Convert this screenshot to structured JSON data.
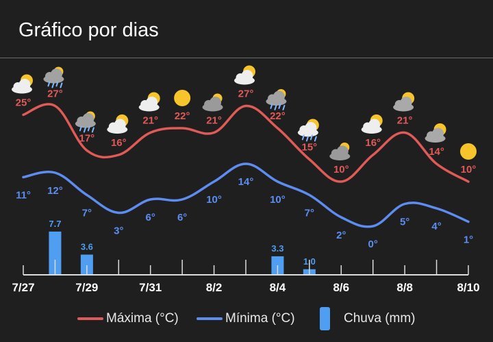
{
  "header": {
    "title": "Gráfico por dias"
  },
  "colors": {
    "max": "#e05a58",
    "min": "#5d8df0",
    "rain": "#4f9ef1",
    "bg": "#1f1f1f",
    "axis": "#dddddd"
  },
  "legend": [
    {
      "label": "Máxima (°C)",
      "kind": "line",
      "color": "#e05a58"
    },
    {
      "label": "Mínima (°C)",
      "kind": "line",
      "color": "#5d8df0"
    },
    {
      "label": "Chuva (mm)",
      "kind": "bar",
      "color": "#4f9ef1"
    }
  ],
  "chart_data": {
    "type": "line",
    "x_tick_labels": [
      "7/27",
      "7/29",
      "7/31",
      "8/2",
      "8/4",
      "8/6",
      "8/8",
      "8/10"
    ],
    "x": [
      "7/27",
      "7/28",
      "7/29",
      "7/30",
      "7/31",
      "8/1",
      "8/2",
      "8/3",
      "8/4",
      "8/5",
      "8/6",
      "8/7",
      "8/8",
      "8/9",
      "8/10"
    ],
    "series": [
      {
        "name": "Máxima (°C)",
        "values": [
          25,
          27,
          17,
          16,
          21,
          22,
          21,
          27,
          22,
          15,
          10,
          16,
          21,
          14,
          10
        ],
        "labels": [
          "25°",
          "27°",
          "17°",
          "16°",
          "21°",
          "22°",
          "21°",
          "27°",
          "22°",
          "15°",
          "10°",
          "16°",
          "21°",
          "14°",
          "10°"
        ]
      },
      {
        "name": "Mínima (°C)",
        "values": [
          11,
          12,
          7,
          3,
          6,
          6,
          10,
          14,
          10,
          7,
          2,
          0,
          5,
          4,
          1
        ],
        "labels": [
          "11°",
          "12°",
          "7°",
          "3°",
          "6°",
          "6°",
          "10°",
          "14°",
          "10°",
          "7°",
          "2°",
          "0°",
          "5°",
          "4°",
          "1°"
        ]
      },
      {
        "name": "Chuva (mm)",
        "type": "bar",
        "values": [
          0,
          7.7,
          3.6,
          0,
          0,
          0,
          0,
          0,
          3.3,
          1.0,
          0,
          0,
          0,
          0,
          0
        ],
        "labels": [
          "",
          "7.7",
          "3.6",
          "",
          "",
          "",
          "",
          "",
          "3.3",
          "1.0",
          "",
          "",
          "",
          "",
          ""
        ]
      }
    ],
    "icons": [
      "sun-cloud-icon",
      "cloud-rain-icon",
      "cloud-rain-icon",
      "sun-cloud-icon",
      "sun-cloud-icon",
      "sun-icon",
      "cloud-icon",
      "sun-cloud-icon",
      "cloud-rain-icon",
      "sun-cloud-rain-icon",
      "cloud-icon",
      "sun-cloud-icon",
      "cloud-sun-icon",
      "cloud-sun-icon",
      "sun-icon"
    ]
  }
}
